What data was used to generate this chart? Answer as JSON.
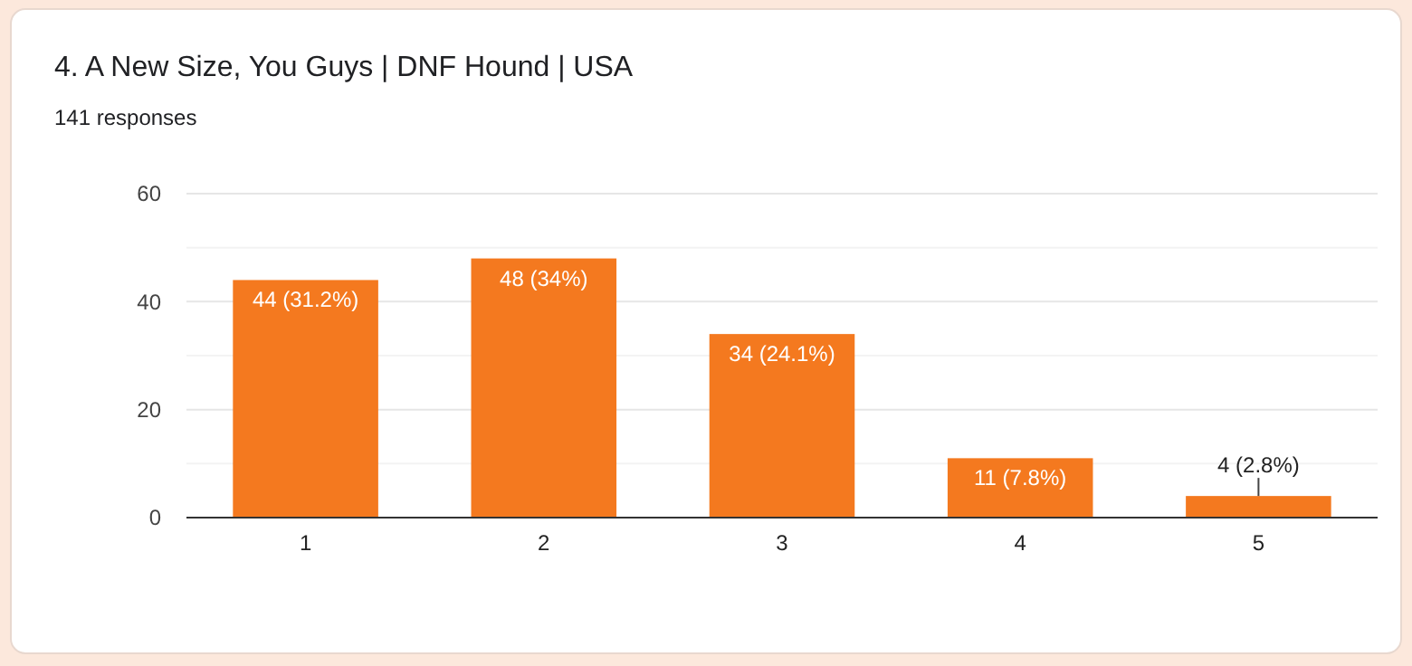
{
  "chart_data": {
    "type": "bar",
    "title": "4. A New Size, You Guys | DNF Hound | USA",
    "subtitle": "141 responses",
    "categories": [
      "1",
      "2",
      "3",
      "4",
      "5"
    ],
    "values": [
      44,
      48,
      34,
      11,
      4
    ],
    "value_labels": [
      "44 (31.2%)",
      "48 (34%)",
      "34 (24.1%)",
      "11 (7.8%)",
      "4 (2.8%)"
    ],
    "color": "#f4791f",
    "ylim": [
      0,
      60
    ],
    "yticks": [
      0,
      {
        "value": 10,
        "label": null
      },
      20,
      {
        "value": 30,
        "label": null
      },
      40,
      {
        "value": 50,
        "label": null
      },
      60
    ],
    "grid": "y"
  }
}
